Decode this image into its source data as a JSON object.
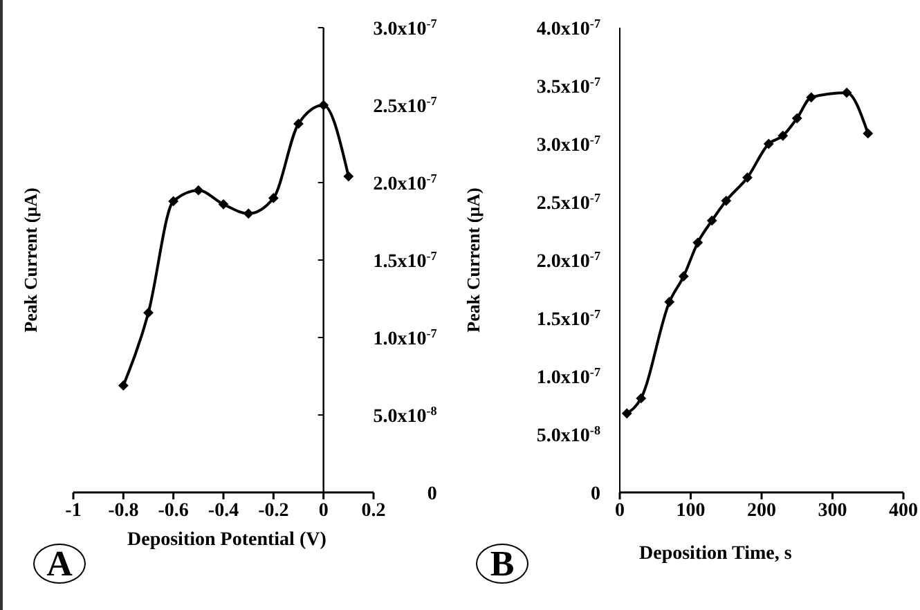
{
  "chart_data": [
    {
      "type": "line",
      "xlabel": "Deposition Potential (V)",
      "ylabel": "Peak Current (µA)",
      "annotations": [
        "A"
      ],
      "marker": "diamond",
      "line_style": "solid",
      "grid": false,
      "legend": false,
      "x": [
        -0.8,
        -0.7,
        -0.6,
        -0.5,
        -0.4,
        -0.3,
        -0.2,
        -0.1,
        0,
        0.1
      ],
      "series": [
        {
          "color": "#000000",
          "values": [
            6.9e-08,
            1.16e-07,
            1.88e-07,
            1.95e-07,
            1.86e-07,
            1.8e-07,
            1.9e-07,
            2.38e-07,
            2.5e-07,
            2.04e-07
          ]
        }
      ],
      "xlim": [
        -1,
        0.2
      ],
      "xticks": [
        -1,
        -0.8,
        -0.6,
        -0.4,
        -0.2,
        0,
        0.2
      ],
      "ylim": [
        0,
        3e-07
      ],
      "yticks": [
        {
          "value": 0,
          "label": "0"
        },
        {
          "value": 5e-08,
          "label": "5.0x10$^{-8}$"
        },
        {
          "value": 1e-07,
          "label": "1.0x10$^{-7}$"
        },
        {
          "value": 1.5e-07,
          "label": "1.5x10$^{-7}$"
        },
        {
          "value": 2e-07,
          "label": "2.0x10$^{-7}$"
        },
        {
          "value": 2.5e-07,
          "label": "2.5x10$^{-7}$"
        },
        {
          "value": 3e-07,
          "label": "3.0x10$^{-7}$"
        }
      ]
    },
    {
      "type": "line",
      "xlabel": "Deposition Time, s",
      "ylabel": "Peak Current (µA)",
      "annotations": [
        "B"
      ],
      "marker": "diamond",
      "line_style": "solid",
      "grid": false,
      "legend": false,
      "x": [
        10,
        30,
        70,
        90,
        110,
        130,
        150,
        180,
        210,
        230,
        250,
        270,
        320,
        350
      ],
      "series": [
        {
          "color": "#000000",
          "values": [
            6.8e-08,
            8.1e-08,
            1.64e-07,
            1.86e-07,
            2.15e-07,
            2.34e-07,
            2.51e-07,
            2.71e-07,
            3e-07,
            3.07e-07,
            3.22e-07,
            3.4e-07,
            3.44e-07,
            3.09e-07
          ]
        }
      ],
      "xlim": [
        0,
        400
      ],
      "xticks": [
        0,
        100,
        200,
        300,
        400
      ],
      "ylim": [
        0,
        4e-07
      ],
      "yticks": [
        {
          "value": 0,
          "label": "0"
        },
        {
          "value": 5e-08,
          "label": "5.0x10$^{-8}$"
        },
        {
          "value": 1e-07,
          "label": "1.0x10$^{-7}$"
        },
        {
          "value": 1.5e-07,
          "label": "1.5x10$^{-7}$"
        },
        {
          "value": 2e-07,
          "label": "2.0x10$^{-7}$"
        },
        {
          "value": 2.5e-07,
          "label": "2.5x10$^{-7}$"
        },
        {
          "value": 3e-07,
          "label": "3.0x10$^{-7}$"
        },
        {
          "value": 3.5e-07,
          "label": "3.5x10$^{-7}$"
        },
        {
          "value": 4e-07,
          "label": "4.0x10$^{-7}$"
        }
      ]
    }
  ]
}
